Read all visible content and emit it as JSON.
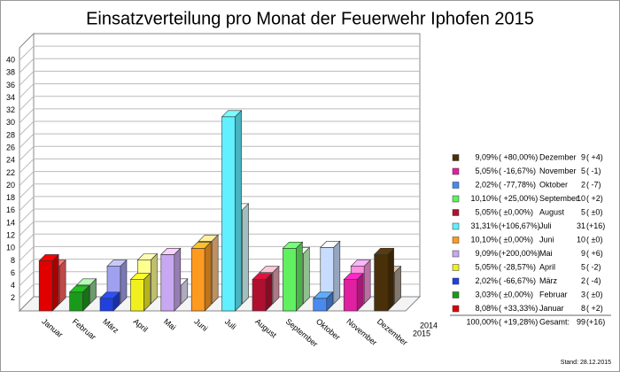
{
  "chart_data": {
    "type": "bar3d",
    "title": "Einsatzverteilung pro Monat der Feuerwehr Iphofen 2015",
    "categories": [
      "Januar",
      "Februar",
      "März",
      "April",
      "Mai",
      "Juni",
      "Juli",
      "August",
      "September",
      "Oktober",
      "November",
      "Dezember"
    ],
    "series": [
      {
        "name": "2015",
        "values": [
          8,
          3,
          2,
          5,
          9,
          10,
          31,
          5,
          10,
          2,
          5,
          9
        ],
        "colors": [
          "#e00000",
          "#1a9a1a",
          "#2040e0",
          "#f0f020",
          "#c8a8f0",
          "#ff9a20",
          "#60f0ff",
          "#b01030",
          "#60f060",
          "#4a8af0",
          "#e020a0",
          "#4a3008"
        ]
      },
      {
        "name": "2014",
        "values": [
          6,
          3,
          6,
          7,
          3,
          10,
          15,
          5,
          8,
          9,
          6,
          5
        ],
        "colors": [
          "#ff6060",
          "#90d090",
          "#a0a0f0",
          "#ffff90",
          "#ece4ff",
          "#ffc080",
          "#d8ffff",
          "#e8a0b0",
          "#c0ffc0",
          "#c8dcff",
          "#ff90e0",
          "#b0a090"
        ]
      }
    ],
    "ylim": [
      0,
      42
    ],
    "yticks": [
      2,
      4,
      6,
      8,
      10,
      12,
      14,
      16,
      18,
      20,
      22,
      24,
      26,
      28,
      30,
      32,
      34,
      36,
      38,
      40
    ],
    "grid": true
  },
  "legend_table": {
    "rows": [
      {
        "color": "#4a3008",
        "percent": "9,09%",
        "change": "( +80,00%)",
        "month": "Dezember",
        "count": "9",
        "diff": "( +4)"
      },
      {
        "color": "#e020a0",
        "percent": "5,05%",
        "change": "( -16,67%)",
        "month": "November",
        "count": "5",
        "diff": "( -1)"
      },
      {
        "color": "#4a8af0",
        "percent": "2,02%",
        "change": "( -77,78%)",
        "month": "Oktober",
        "count": "2",
        "diff": "( -7)"
      },
      {
        "color": "#60f060",
        "percent": "10,10%",
        "change": "( +25,00%)",
        "month": "September",
        "count": "10",
        "diff": "( +2)"
      },
      {
        "color": "#b01030",
        "percent": "5,05%",
        "change": "( ±0,00%)",
        "month": "August",
        "count": "5",
        "diff": "( ±0)"
      },
      {
        "color": "#60f0ff",
        "percent": "31,31%",
        "change": "(+106,67%)",
        "month": "Juli",
        "count": "31",
        "diff": "(+16)"
      },
      {
        "color": "#ff9a20",
        "percent": "10,10%",
        "change": "( ±0,00%)",
        "month": "Juni",
        "count": "10",
        "diff": "( ±0)"
      },
      {
        "color": "#c8a8f0",
        "percent": "9,09%",
        "change": "(+200,00%)",
        "month": "Mai",
        "count": "9",
        "diff": "( +6)"
      },
      {
        "color": "#f0f020",
        "percent": "5,05%",
        "change": "( -28,57%)",
        "month": "April",
        "count": "5",
        "diff": "( -2)"
      },
      {
        "color": "#2040e0",
        "percent": "2,02%",
        "change": "( -66,67%)",
        "month": "März",
        "count": "2",
        "diff": "( -4)"
      },
      {
        "color": "#1a9a1a",
        "percent": "3,03%",
        "change": "( ±0,00%)",
        "month": "Februar",
        "count": "3",
        "diff": "( ±0)"
      },
      {
        "color": "#e00000",
        "percent": "8,08%",
        "change": "( +33,33%)",
        "month": "Januar",
        "count": "8",
        "diff": "( +2)"
      }
    ],
    "total": {
      "percent": "100,00%",
      "change": "( +19,28%)",
      "label": "Gesamt:",
      "count": "99",
      "diff": "(+16)"
    }
  },
  "footer": "Stand: 28.12.2015"
}
